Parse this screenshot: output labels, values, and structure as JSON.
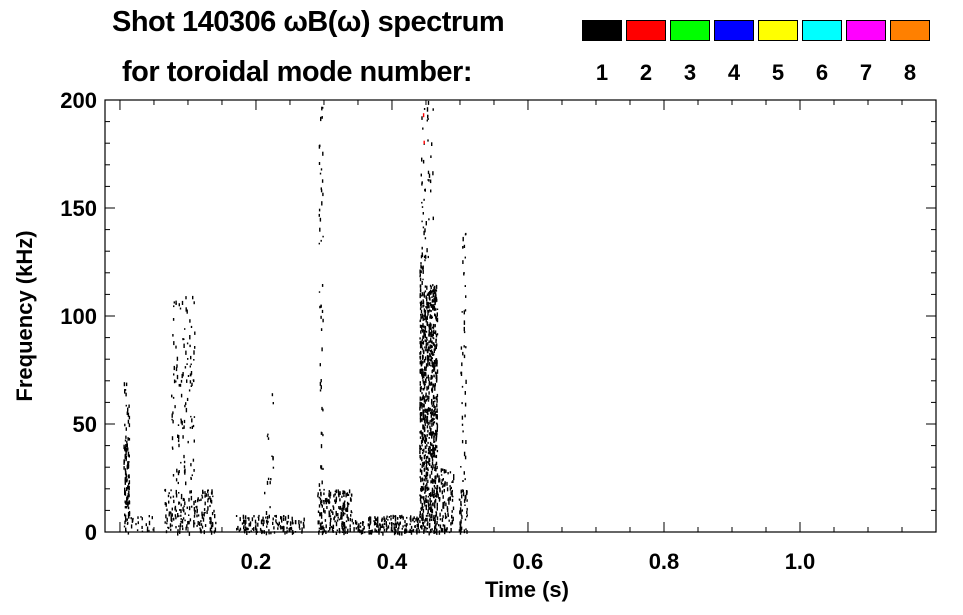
{
  "chart_data": {
    "type": "heatmap",
    "title": "Shot 140306 ωB(ω) spectrum",
    "subtitle": "for toroidal mode number:",
    "xlabel": "Time (s)",
    "ylabel": "Frequency (kHz)",
    "xlim": [
      -0.022,
      1.2
    ],
    "ylim": [
      0,
      200
    ],
    "x_ticks": [
      {
        "value": 0.2,
        "label": "0.2"
      },
      {
        "value": 0.4,
        "label": "0.4"
      },
      {
        "value": 0.6,
        "label": "0.6"
      },
      {
        "value": 0.8,
        "label": "0.8"
      },
      {
        "value": 1.0,
        "label": "1.0"
      }
    ],
    "y_ticks": [
      {
        "value": 0,
        "label": "0"
      },
      {
        "value": 50,
        "label": "50"
      },
      {
        "value": 100,
        "label": "100"
      },
      {
        "value": 150,
        "label": "150"
      },
      {
        "value": 200,
        "label": "200"
      }
    ],
    "legend": [
      {
        "mode": "1",
        "color": "#000000"
      },
      {
        "mode": "2",
        "color": "#ff0000"
      },
      {
        "mode": "3",
        "color": "#00ff00"
      },
      {
        "mode": "4",
        "color": "#0000ff"
      },
      {
        "mode": "5",
        "color": "#ffff00"
      },
      {
        "mode": "6",
        "color": "#00ffff"
      },
      {
        "mode": "7",
        "color": "#ff00ff"
      },
      {
        "mode": "8",
        "color": "#ff8000"
      }
    ],
    "activity_regions": [
      {
        "t": [
          0.005,
          0.013
        ],
        "f": [
          0,
          45
        ],
        "mode": "1",
        "density": 0.8
      },
      {
        "t": [
          0.005,
          0.013
        ],
        "f": [
          45,
          70
        ],
        "mode": "1",
        "density": 0.2
      },
      {
        "t": [
          0.015,
          0.05
        ],
        "f": [
          0,
          8
        ],
        "mode": "1",
        "density": 0.2
      },
      {
        "t": [
          0.065,
          0.14
        ],
        "f": [
          0,
          20
        ],
        "mode": "1",
        "density": 0.3
      },
      {
        "t": [
          0.075,
          0.11
        ],
        "f": [
          20,
          110
        ],
        "mode": "1",
        "density": 0.1
      },
      {
        "t": [
          0.17,
          0.27
        ],
        "f": [
          0,
          8
        ],
        "mode": "1",
        "density": 0.45
      },
      {
        "t": [
          0.21,
          0.225
        ],
        "f": [
          8,
          66
        ],
        "mode": "1",
        "density": 0.05
      },
      {
        "t": [
          0.292,
          0.298
        ],
        "f": [
          20,
          200
        ],
        "mode": "1",
        "density": 0.12
      },
      {
        "t": [
          0.29,
          0.34
        ],
        "f": [
          0,
          20
        ],
        "mode": "1",
        "density": 0.5
      },
      {
        "t": [
          0.34,
          0.44
        ],
        "f": [
          0,
          8
        ],
        "mode": "1",
        "density": 0.6
      },
      {
        "t": [
          0.44,
          0.466
        ],
        "f": [
          0,
          115
        ],
        "mode": "1",
        "density": 0.75
      },
      {
        "t": [
          0.44,
          0.445
        ],
        "f": [
          115,
          127
        ],
        "mode": "1",
        "density": 0.6
      },
      {
        "t": [
          0.442,
          0.46
        ],
        "f": [
          125,
          200
        ],
        "mode": "1",
        "density": 0.1
      },
      {
        "t": [
          0.445,
          0.45
        ],
        "f": [
          145,
          200
        ],
        "mode": "2",
        "density": 0.02
      },
      {
        "t": [
          0.46,
          0.49
        ],
        "f": [
          0,
          30
        ],
        "mode": "1",
        "density": 0.35
      },
      {
        "t": [
          0.498,
          0.51
        ],
        "f": [
          0,
          20
        ],
        "mode": "1",
        "density": 0.5
      },
      {
        "t": [
          0.5,
          0.508
        ],
        "f": [
          20,
          140
        ],
        "mode": "1",
        "density": 0.12
      }
    ]
  }
}
